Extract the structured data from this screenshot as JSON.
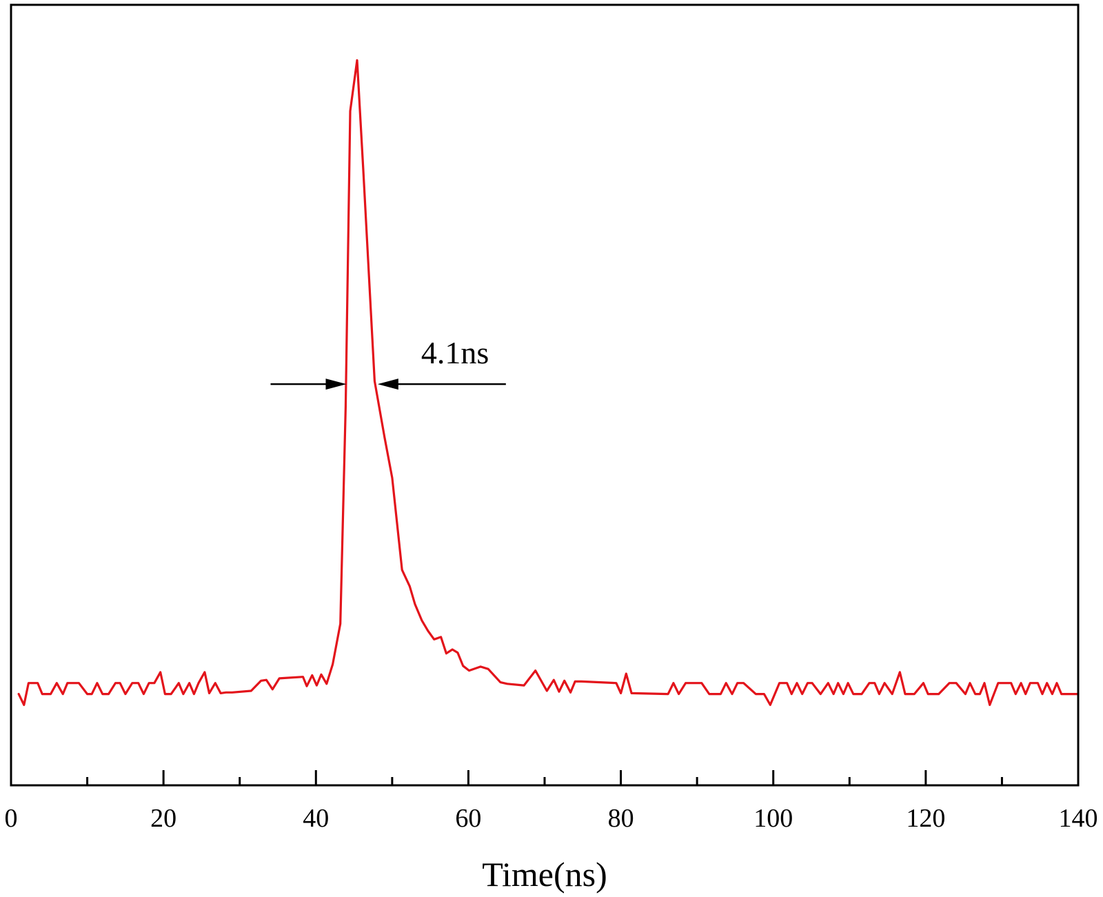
{
  "chart_data": {
    "type": "line",
    "title": "",
    "xlabel": "Time(ns)",
    "ylabel": "",
    "xlim": [
      0,
      140
    ],
    "ylim": [
      0,
      1
    ],
    "x_ticks": [
      0,
      20,
      40,
      60,
      80,
      100,
      120,
      140
    ],
    "x_minor_ticks": [
      10,
      30,
      50,
      70,
      90,
      110,
      130
    ],
    "grid": false,
    "legend": "none",
    "line_color": "#e3141b",
    "annotation": {
      "text": "4.1ns",
      "left_x": 44.0,
      "right_x": 48.1,
      "y": 0.514
    },
    "series": [
      {
        "x": [
          1.0,
          1.7,
          2.3,
          3.5,
          4.1,
          5.2,
          6.0,
          6.8,
          7.4,
          8.9,
          10.0,
          10.6,
          11.3,
          12.0,
          12.8,
          13.7,
          14.3,
          15.0,
          15.9,
          16.7,
          17.4,
          18.1,
          18.8,
          19.6,
          20.2,
          21.0,
          22.0,
          22.6,
          23.4,
          24.0,
          24.6,
          25.4,
          26.0,
          26.8,
          27.5,
          28.2,
          29.0,
          31.5,
          32.8,
          33.5,
          34.3,
          35.2,
          38.3,
          38.8,
          39.5,
          40.1,
          40.7,
          41.4,
          42.2,
          43.2,
          43.9,
          44.5,
          45.4,
          46.2,
          47.7,
          49.0,
          50.0,
          51.3,
          52.3,
          53.0,
          53.9,
          54.7,
          55.5,
          56.4,
          57.1,
          57.9,
          58.6,
          59.3,
          60.1,
          61.6,
          62.6,
          64.2,
          65.1,
          67.3,
          68.8,
          70.3,
          71.2,
          71.9,
          72.6,
          73.4,
          74.0,
          74.8,
          79.4,
          80.0,
          80.7,
          81.4,
          86.2,
          86.9,
          87.6,
          88.5,
          90.6,
          91.6,
          93.1,
          93.8,
          94.6,
          95.3,
          96.1,
          97.7,
          98.8,
          99.6,
          100.8,
          101.8,
          102.4,
          103.1,
          103.8,
          104.5,
          105.1,
          106.2,
          107.2,
          107.9,
          108.5,
          109.2,
          109.8,
          110.5,
          111.6,
          112.6,
          113.3,
          113.9,
          114.6,
          115.6,
          116.6,
          117.3,
          118.5,
          119.7,
          120.3,
          121.0,
          121.7,
          123.1,
          124.0,
          125.2,
          125.8,
          126.5,
          127.1,
          127.7,
          128.4,
          129.5,
          130.5,
          131.2,
          131.8,
          132.5,
          133.1,
          133.7,
          134.7,
          135.3,
          135.9,
          136.6,
          137.2,
          137.8,
          139.3,
          140.0
        ],
        "y": [
          0.117,
          0.103,
          0.131,
          0.131,
          0.117,
          0.117,
          0.131,
          0.117,
          0.131,
          0.131,
          0.117,
          0.117,
          0.131,
          0.117,
          0.117,
          0.131,
          0.131,
          0.117,
          0.131,
          0.131,
          0.117,
          0.131,
          0.131,
          0.145,
          0.117,
          0.117,
          0.131,
          0.117,
          0.131,
          0.117,
          0.131,
          0.145,
          0.118,
          0.131,
          0.118,
          0.119,
          0.119,
          0.121,
          0.134,
          0.135,
          0.123,
          0.137,
          0.139,
          0.127,
          0.141,
          0.128,
          0.142,
          0.13,
          0.155,
          0.207,
          0.485,
          0.864,
          0.929,
          0.791,
          0.518,
          0.446,
          0.394,
          0.276,
          0.255,
          0.232,
          0.211,
          0.198,
          0.187,
          0.19,
          0.169,
          0.174,
          0.17,
          0.153,
          0.147,
          0.152,
          0.149,
          0.132,
          0.13,
          0.128,
          0.147,
          0.121,
          0.135,
          0.12,
          0.134,
          0.119,
          0.133,
          0.133,
          0.131,
          0.118,
          0.143,
          0.118,
          0.117,
          0.131,
          0.117,
          0.131,
          0.131,
          0.117,
          0.117,
          0.131,
          0.117,
          0.131,
          0.131,
          0.117,
          0.117,
          0.103,
          0.131,
          0.131,
          0.117,
          0.131,
          0.117,
          0.131,
          0.131,
          0.117,
          0.131,
          0.117,
          0.131,
          0.117,
          0.131,
          0.117,
          0.117,
          0.131,
          0.131,
          0.117,
          0.131,
          0.117,
          0.145,
          0.117,
          0.117,
          0.131,
          0.117,
          0.117,
          0.117,
          0.131,
          0.131,
          0.117,
          0.131,
          0.117,
          0.117,
          0.131,
          0.103,
          0.131,
          0.131,
          0.131,
          0.117,
          0.131,
          0.117,
          0.131,
          0.131,
          0.117,
          0.131,
          0.117,
          0.131,
          0.117,
          0.117,
          0.117
        ]
      }
    ]
  }
}
